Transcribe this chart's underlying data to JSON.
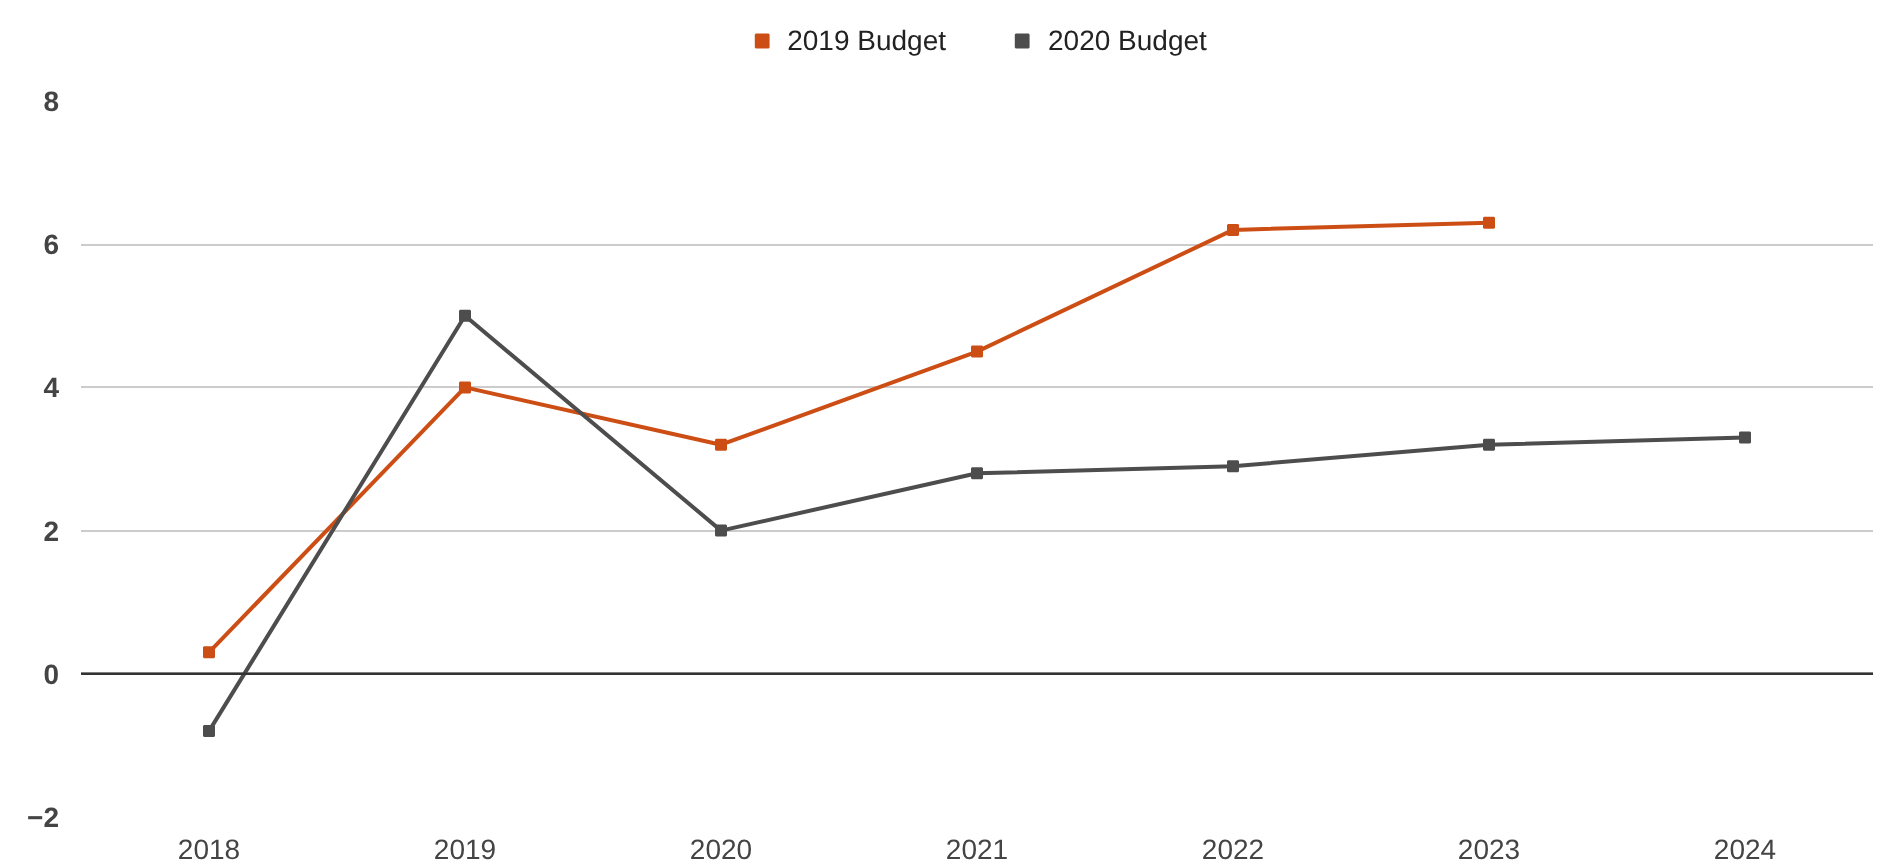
{
  "chart_data": {
    "type": "line",
    "categories": [
      "2018",
      "2019",
      "2020",
      "2021",
      "2022",
      "2023",
      "2024"
    ],
    "series": [
      {
        "name": "2019 Budget",
        "color": "#cc4e14",
        "values": [
          0.3,
          4.0,
          3.2,
          4.5,
          6.2,
          6.3,
          null
        ]
      },
      {
        "name": "2020 Budget",
        "color": "#4d4d4d",
        "values": [
          -0.8,
          5.0,
          2.0,
          2.8,
          2.9,
          3.2,
          3.3
        ]
      }
    ],
    "ylim": [
      -2,
      8
    ],
    "yticks": [
      -2,
      0,
      2,
      4,
      6,
      8
    ],
    "grid": "y",
    "legend": "top",
    "marker": "square",
    "line_style": "solid",
    "ref_lines": [
      {
        "axis": "y",
        "value": 0,
        "color": "#333333"
      }
    ]
  }
}
